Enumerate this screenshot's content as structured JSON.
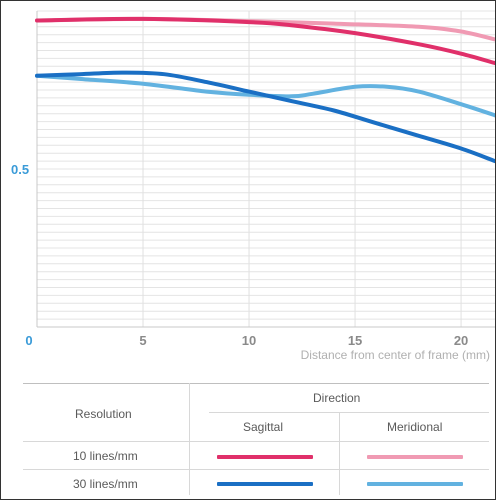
{
  "chart_data": {
    "type": "line",
    "xlabel": "Distance from center of frame (mm)",
    "ylabel": "",
    "xlim": [
      0,
      21.6
    ],
    "ylim": [
      0,
      1
    ],
    "x_ticks": [
      "0",
      "5",
      "10",
      "15",
      "20"
    ],
    "y_ticks": [
      "0.5"
    ],
    "grid": true,
    "series": [
      {
        "resolution": "10 lines/mm",
        "direction": "Sagittal",
        "color": "#e0306a",
        "points": [
          [
            0,
            0.97
          ],
          [
            5,
            0.975
          ],
          [
            10,
            0.965
          ],
          [
            12,
            0.955
          ],
          [
            15,
            0.93
          ],
          [
            18,
            0.895
          ],
          [
            20,
            0.865
          ],
          [
            21.6,
            0.835
          ]
        ]
      },
      {
        "resolution": "10 lines/mm",
        "direction": "Meridional",
        "color": "#f09ab3",
        "points": [
          [
            0,
            0.97
          ],
          [
            5,
            0.975
          ],
          [
            10,
            0.968
          ],
          [
            14,
            0.96
          ],
          [
            18,
            0.95
          ],
          [
            20,
            0.935
          ],
          [
            21.6,
            0.91
          ]
        ]
      },
      {
        "resolution": "30 lines/mm",
        "direction": "Sagittal",
        "color": "#1a6fc4",
        "points": [
          [
            0,
            0.795
          ],
          [
            2,
            0.8
          ],
          [
            4,
            0.805
          ],
          [
            6,
            0.8
          ],
          [
            8,
            0.775
          ],
          [
            10,
            0.745
          ],
          [
            12,
            0.715
          ],
          [
            14,
            0.685
          ],
          [
            16,
            0.645
          ],
          [
            18,
            0.605
          ],
          [
            20,
            0.565
          ],
          [
            21.6,
            0.525
          ]
        ]
      },
      {
        "resolution": "30 lines/mm",
        "direction": "Meridional",
        "color": "#62b2e0",
        "points": [
          [
            0,
            0.795
          ],
          [
            2,
            0.785
          ],
          [
            5,
            0.77
          ],
          [
            8,
            0.745
          ],
          [
            10,
            0.735
          ],
          [
            12,
            0.73
          ],
          [
            13,
            0.738
          ],
          [
            15,
            0.76
          ],
          [
            16.5,
            0.76
          ],
          [
            18,
            0.745
          ],
          [
            20,
            0.705
          ],
          [
            21.6,
            0.67
          ]
        ]
      }
    ]
  },
  "legend": {
    "direction_header": "Direction",
    "resolution_header": "Resolution",
    "columns": [
      "Sagittal",
      "Meridional"
    ],
    "rows": [
      {
        "label": "10 lines/mm",
        "sagittal_color": "#e0306a",
        "meridional_color": "#f09ab3"
      },
      {
        "label": "30 lines/mm",
        "sagittal_color": "#1a6fc4",
        "meridional_color": "#62b2e0"
      }
    ]
  }
}
